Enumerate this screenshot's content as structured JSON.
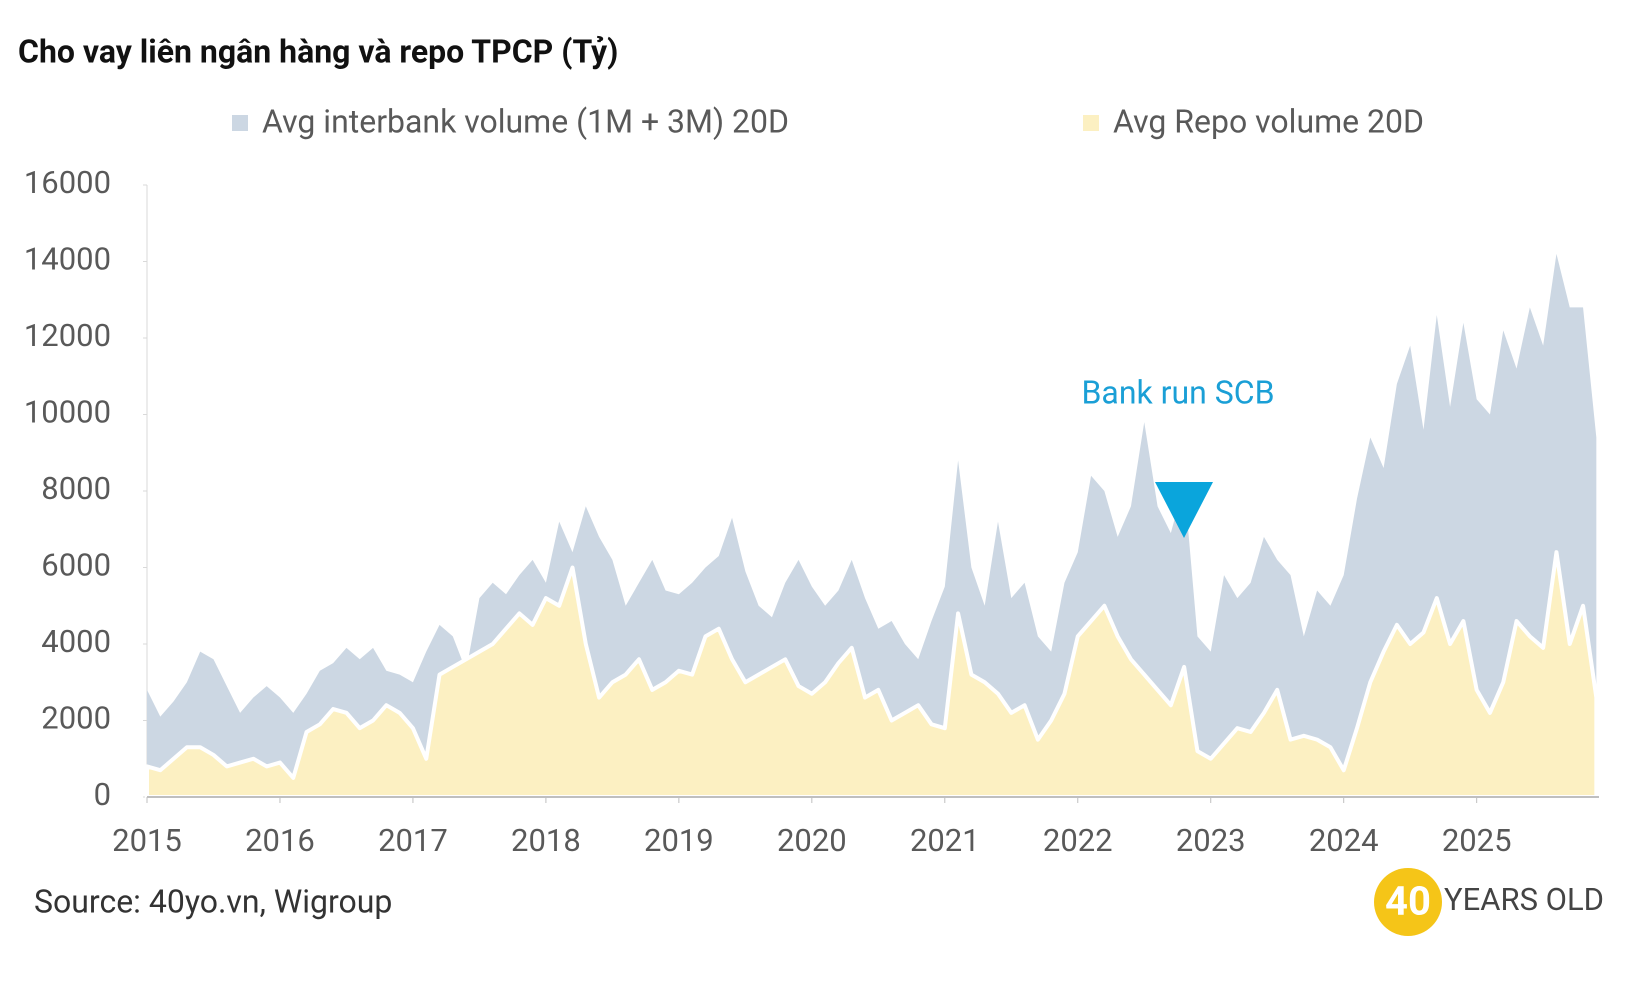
{
  "chart_data": {
    "type": "area",
    "title": "Cho vay liên ngân hàng và repo TPCP (Tỷ)",
    "annotation": "Bank run SCB",
    "source": "Source: 40yo.vn, Wigroup",
    "logo_number": "40",
    "logo_text": "YEARS OLD",
    "x": [
      2015.0,
      2015.1,
      2015.2,
      2015.3,
      2015.4,
      2015.5,
      2015.6,
      2015.7,
      2015.8,
      2015.9,
      2016.0,
      2016.1,
      2016.2,
      2016.3,
      2016.4,
      2016.5,
      2016.6,
      2016.7,
      2016.8,
      2016.9,
      2017.0,
      2017.1,
      2017.2,
      2017.3,
      2017.4,
      2017.5,
      2017.6,
      2017.7,
      2017.8,
      2017.9,
      2018.0,
      2018.1,
      2018.2,
      2018.3,
      2018.4,
      2018.5,
      2018.6,
      2018.7,
      2018.8,
      2018.9,
      2019.0,
      2019.1,
      2019.2,
      2019.3,
      2019.4,
      2019.5,
      2019.6,
      2019.7,
      2019.8,
      2019.9,
      2020.0,
      2020.1,
      2020.2,
      2020.3,
      2020.4,
      2020.5,
      2020.6,
      2020.7,
      2020.8,
      2020.9,
      2021.0,
      2021.1,
      2021.2,
      2021.3,
      2021.4,
      2021.5,
      2021.6,
      2021.7,
      2021.8,
      2021.9,
      2022.0,
      2022.1,
      2022.2,
      2022.3,
      2022.4,
      2022.5,
      2022.6,
      2022.7,
      2022.8,
      2022.9,
      2023.0,
      2023.1,
      2023.2,
      2023.3,
      2023.4,
      2023.5,
      2023.6,
      2023.7,
      2023.8,
      2023.9,
      2024.0,
      2024.1,
      2024.2,
      2024.3,
      2024.4,
      2024.5,
      2024.6,
      2024.7,
      2024.8,
      2024.9,
      2025.0,
      2025.1,
      2025.2,
      2025.3,
      2025.4,
      2025.5,
      2025.6,
      2025.7,
      2025.8,
      2025.9
    ],
    "series": [
      {
        "name": "Avg interbank volume (1M + 3M) 20D",
        "color": "#ccd7e3",
        "values": [
          2800,
          2100,
          2500,
          3000,
          3800,
          3600,
          2900,
          2200,
          2600,
          2900,
          2600,
          2200,
          2700,
          3300,
          3500,
          3900,
          3600,
          3900,
          3300,
          3200,
          3000,
          3800,
          4500,
          4200,
          3300,
          5200,
          5600,
          5300,
          5800,
          6200,
          5600,
          7200,
          6400,
          7600,
          6800,
          6200,
          5000,
          5600,
          6200,
          5400,
          5300,
          5600,
          6000,
          6300,
          7300,
          5900,
          5000,
          4700,
          5600,
          6200,
          5500,
          5000,
          5400,
          6200,
          5200,
          4400,
          4600,
          4000,
          3600,
          4600,
          5500,
          8800,
          6000,
          5000,
          7200,
          5200,
          5600,
          4200,
          3800,
          5600,
          6400,
          8400,
          8000,
          6800,
          7600,
          9800,
          7600,
          6900,
          8200,
          4200,
          3800,
          5800,
          5200,
          5600,
          6800,
          6200,
          5800,
          4200,
          5400,
          5000,
          5800,
          7800,
          9400,
          8600,
          10800,
          11800,
          9600,
          12600,
          10200,
          12400,
          10400,
          10000,
          12200,
          11200,
          12800,
          11800,
          14200,
          12800,
          12800,
          9400
        ]
      },
      {
        "name": "Avg Repo volume 20D",
        "color": "#fcf0c2",
        "values": [
          800,
          700,
          1000,
          1300,
          1300,
          1100,
          800,
          900,
          1000,
          800,
          900,
          500,
          1700,
          1900,
          2300,
          2200,
          1800,
          2000,
          2400,
          2200,
          1800,
          1000,
          3200,
          3400,
          3600,
          3800,
          4000,
          4400,
          4800,
          4500,
          5200,
          5000,
          6000,
          4000,
          2600,
          3000,
          3200,
          3600,
          2800,
          3000,
          3300,
          3200,
          4200,
          4400,
          3600,
          3000,
          3200,
          3400,
          3600,
          2900,
          2700,
          3000,
          3500,
          3900,
          2600,
          2800,
          2000,
          2200,
          2400,
          1900,
          1800,
          4800,
          3200,
          3000,
          2700,
          2200,
          2400,
          1500,
          2000,
          2700,
          4200,
          4600,
          5000,
          4200,
          3600,
          3200,
          2800,
          2400,
          3400,
          1200,
          1000,
          1400,
          1800,
          1700,
          2200,
          2800,
          1500,
          1600,
          1500,
          1300,
          700,
          1800,
          3000,
          3800,
          4500,
          4000,
          4300,
          5200,
          4000,
          4600,
          2800,
          2200,
          3000,
          4600,
          4200,
          3900,
          6400,
          4000,
          5000,
          2600
        ]
      }
    ],
    "xlim": [
      2015,
      2025.92
    ],
    "xticks": [
      2015,
      2016,
      2017,
      2018,
      2019,
      2020,
      2021,
      2022,
      2023,
      2024,
      2025
    ],
    "ylim": [
      0,
      16000
    ],
    "yticks": [
      0,
      2000,
      4000,
      6000,
      8000,
      10000,
      12000,
      14000,
      16000
    ]
  }
}
